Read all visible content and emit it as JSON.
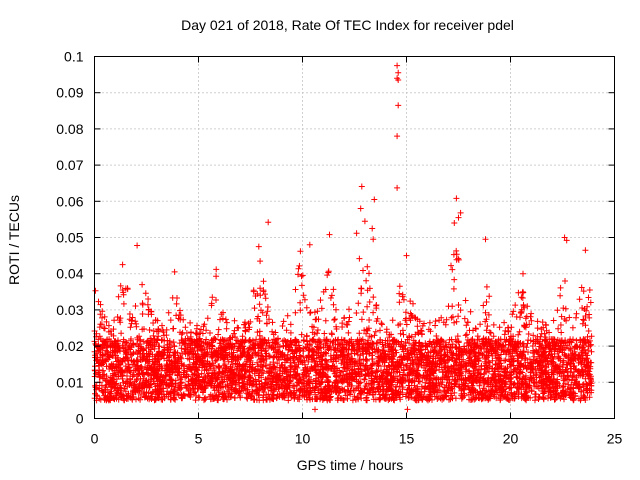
{
  "chart_data": {
    "type": "scatter",
    "title": "Day 021 of 2018, Rate Of TEC Index for receiver pdel",
    "xlabel": "GPS time / hours",
    "ylabel": "ROTI / TECUs",
    "xlim": [
      0,
      25
    ],
    "ylim": [
      0,
      0.1
    ],
    "xticks": [
      0,
      5,
      10,
      15,
      20,
      25
    ],
    "xtick_labels": [
      "0",
      "5",
      "10",
      "15",
      "20",
      "25"
    ],
    "yticks": [
      0,
      0.01,
      0.02,
      0.03,
      0.04,
      0.05,
      0.06,
      0.07,
      0.08,
      0.09,
      0.1
    ],
    "ytick_labels": [
      "0",
      "0.01",
      "0.02",
      "0.03",
      "0.04",
      "0.05",
      "0.06",
      "0.07",
      "0.08",
      "0.09",
      "0.1"
    ],
    "grid": true,
    "marker": "+",
    "color": "#ff0000",
    "data_range_hours": [
      0,
      23.9
    ],
    "series": [
      {
        "name": "ROTI",
        "notable_points": [
          {
            "x": 14.55,
            "y": 0.0975
          },
          {
            "x": 14.6,
            "y": 0.0955
          },
          {
            "x": 14.55,
            "y": 0.094
          },
          {
            "x": 14.6,
            "y": 0.0935
          },
          {
            "x": 14.6,
            "y": 0.0865
          },
          {
            "x": 14.55,
            "y": 0.078
          },
          {
            "x": 14.55,
            "y": 0.0637
          },
          {
            "x": 12.85,
            "y": 0.0641
          },
          {
            "x": 12.8,
            "y": 0.058
          },
          {
            "x": 13.45,
            "y": 0.0605
          },
          {
            "x": 13.0,
            "y": 0.0545
          },
          {
            "x": 13.35,
            "y": 0.0525
          },
          {
            "x": 13.4,
            "y": 0.0495
          },
          {
            "x": 17.4,
            "y": 0.0608
          },
          {
            "x": 17.6,
            "y": 0.0568
          },
          {
            "x": 17.5,
            "y": 0.0555
          },
          {
            "x": 17.3,
            "y": 0.054
          },
          {
            "x": 8.35,
            "y": 0.0542
          },
          {
            "x": 11.3,
            "y": 0.0508
          },
          {
            "x": 12.6,
            "y": 0.0512
          },
          {
            "x": 22.6,
            "y": 0.05
          },
          {
            "x": 22.7,
            "y": 0.0492
          },
          {
            "x": 18.8,
            "y": 0.0495
          },
          {
            "x": 2.05,
            "y": 0.0478
          },
          {
            "x": 10.35,
            "y": 0.048
          },
          {
            "x": 7.9,
            "y": 0.0475
          },
          {
            "x": 23.6,
            "y": 0.0465
          },
          {
            "x": 9.9,
            "y": 0.0462
          },
          {
            "x": 15.0,
            "y": 0.045
          },
          {
            "x": 1.35,
            "y": 0.0425
          },
          {
            "x": 5.85,
            "y": 0.0412
          },
          {
            "x": 20.6,
            "y": 0.04
          },
          {
            "x": 3.85,
            "y": 0.0405
          },
          {
            "x": 0.05,
            "y": 0.0353
          },
          {
            "x": 10.6,
            "y": 0.0025
          },
          {
            "x": 15.05,
            "y": 0.0025
          }
        ]
      }
    ]
  }
}
